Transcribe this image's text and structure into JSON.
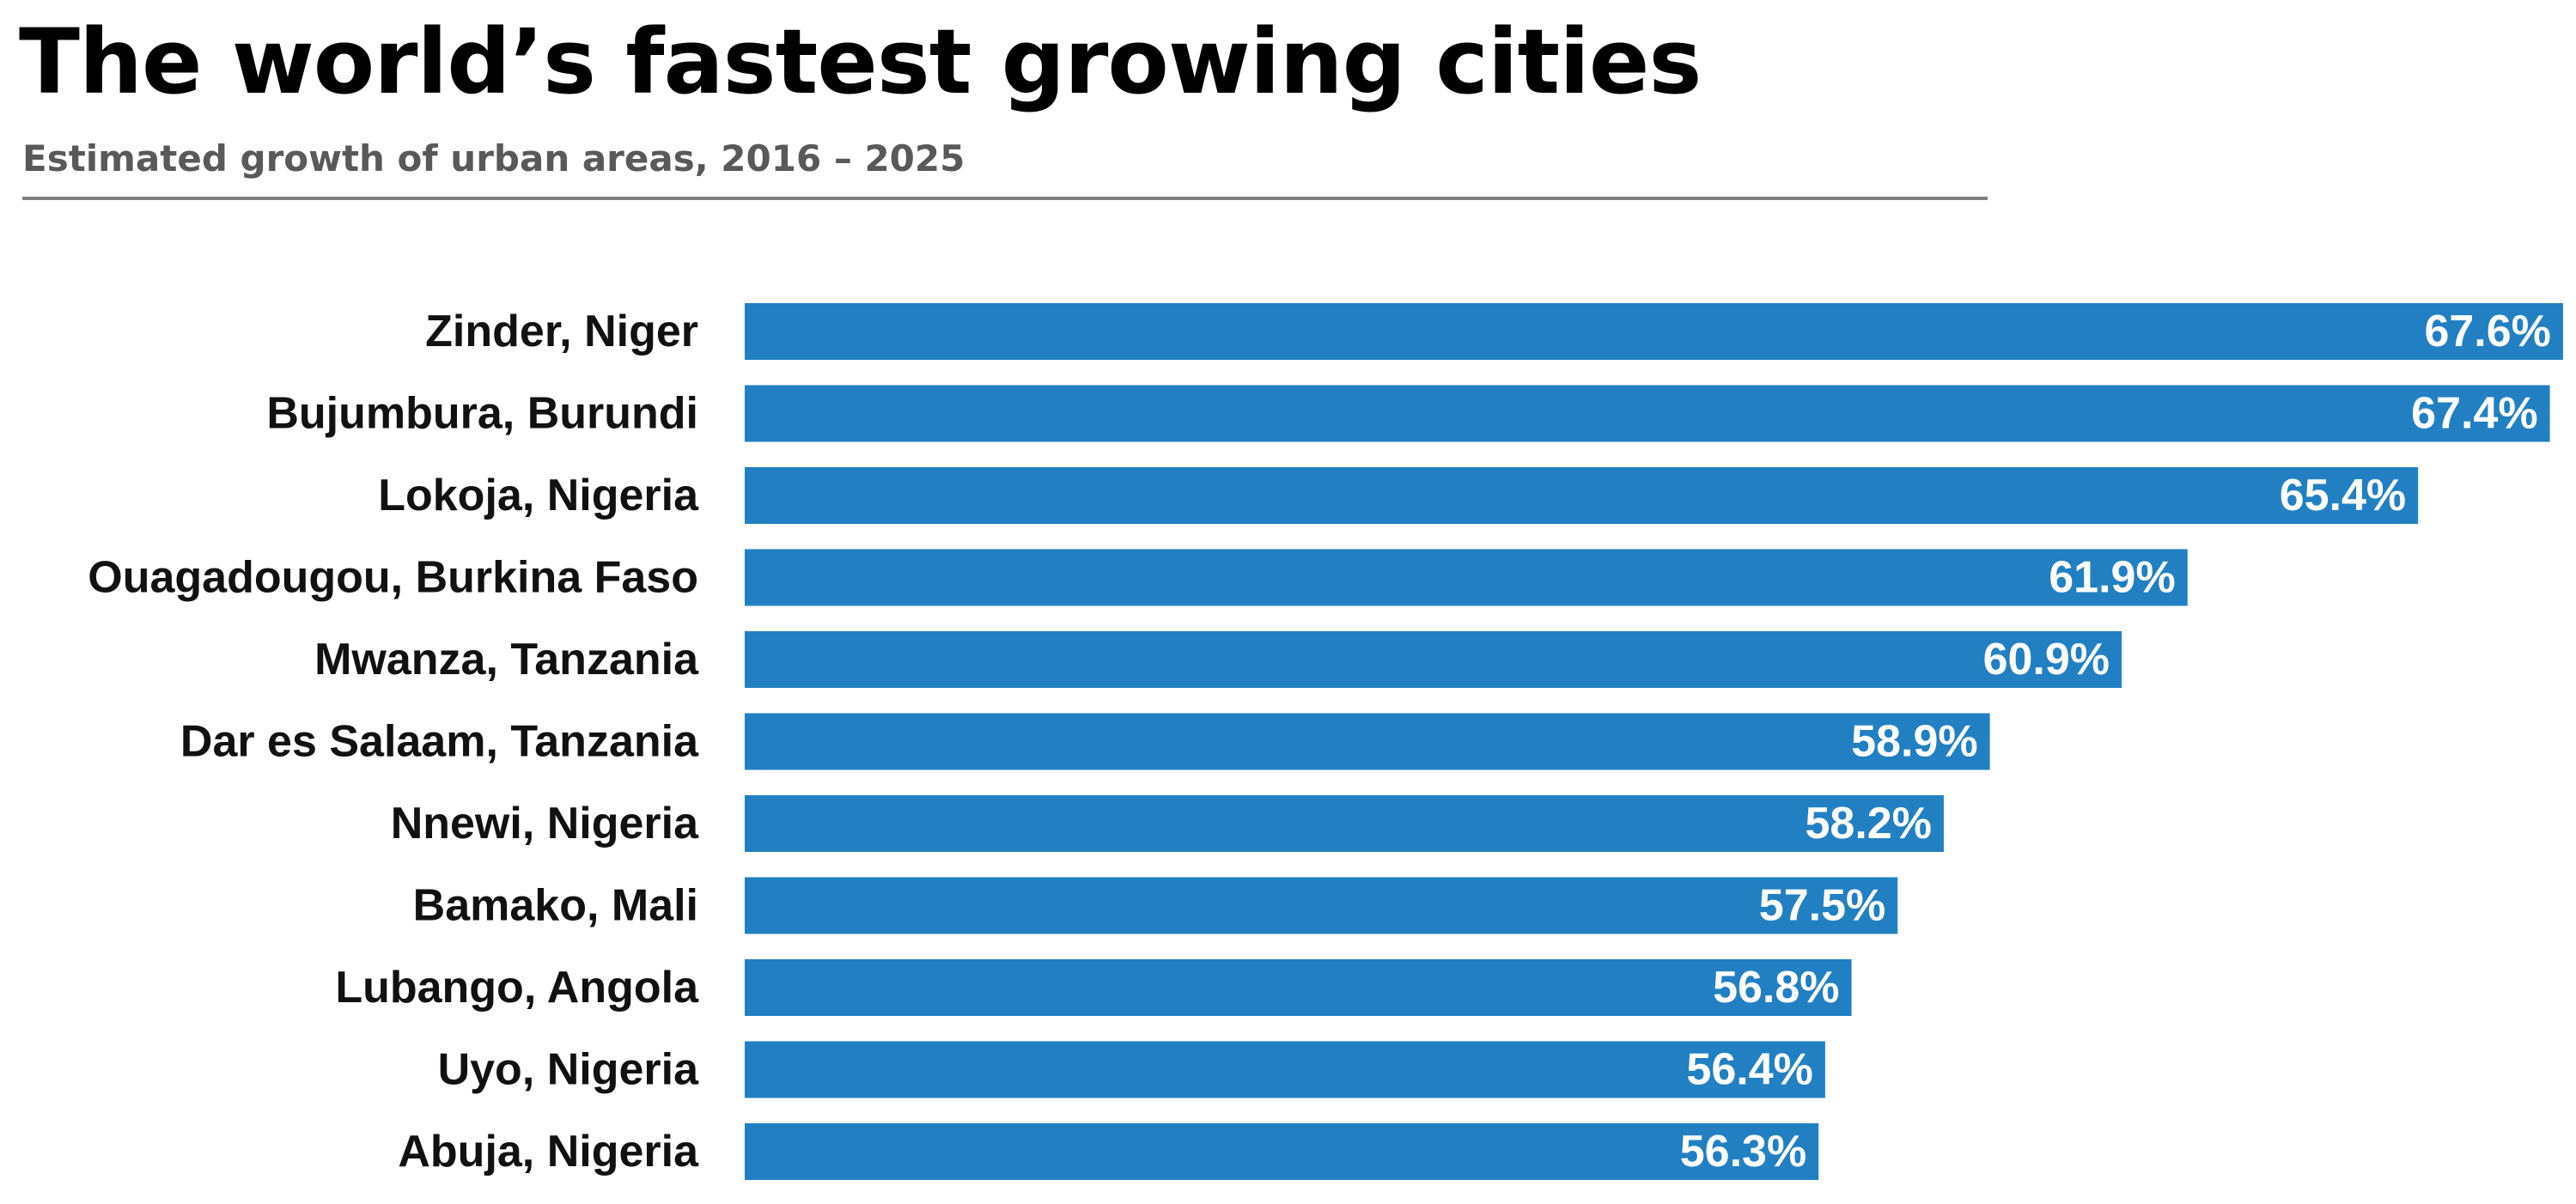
{
  "chart_data": {
    "type": "bar",
    "orientation": "horizontal",
    "title": "The world’s fastest growing cities",
    "subtitle": "Estimated growth of urban areas, 2016 –  2025",
    "categories": [
      "Zinder, Niger",
      "Bujumbura, Burundi",
      "Lokoja, Nigeria",
      "Ouagadougou, Burkina Faso",
      "Mwanza, Tanzania",
      "Dar es Salaam, Tanzania",
      "Nnewi, Nigeria",
      "Bamako, Mali",
      "Lubango, Angola",
      "Uyo, Nigeria",
      "Abuja, Nigeria"
    ],
    "values": [
      67.6,
      67.4,
      65.4,
      61.9,
      60.9,
      58.9,
      58.2,
      57.5,
      56.8,
      56.4,
      56.3
    ],
    "value_labels": [
      "67.6%",
      "67.4%",
      "65.4%",
      "61.9%",
      "60.9%",
      "58.9%",
      "58.2%",
      "57.5%",
      "56.8%",
      "56.4%",
      "56.3%"
    ],
    "xlabel": "",
    "ylabel": "",
    "xlim": [
      40,
      67.6
    ],
    "grid": false,
    "legend": "none",
    "bar_color": "#2280c2",
    "label_color": "#ffffff"
  }
}
